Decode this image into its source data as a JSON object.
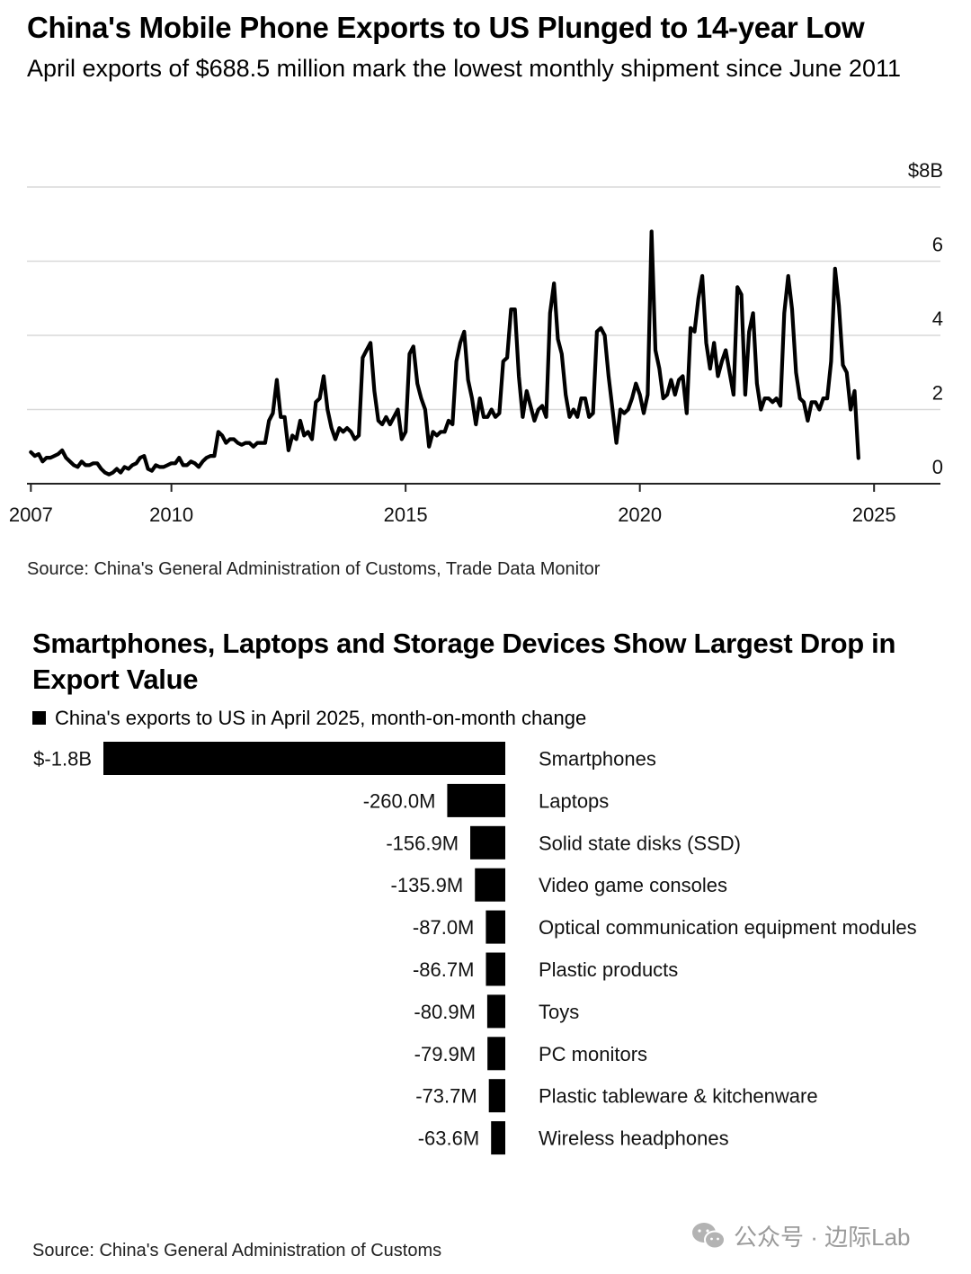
{
  "chart1": {
    "title": "China's Mobile Phone Exports to US Plunged to 14-year Low",
    "subtitle": "April exports of $688.5 million mark the lowest monthly shipment since June 2011",
    "source": "Source: China's General Administration of Customs, Trade Data Monitor"
  },
  "chart2": {
    "title": "Smartphones, Laptops and Storage Devices Show Largest Drop in Export Value",
    "legend": "China's exports to US in April 2025, month-on-month change",
    "source": "Source: China's General Administration of Customs"
  },
  "watermark": {
    "text": "公众号 · 边际Lab"
  },
  "colors": {
    "line": "#000000",
    "bar": "#000000",
    "grid": "#d9d9d9",
    "axis": "#222222",
    "watermark": "#9a9a9a"
  },
  "chart_data": [
    {
      "type": "line",
      "title": "China's Mobile Phone Exports to US Plunged to 14-year Low",
      "xlabel": "",
      "ylabel": "",
      "x_ticks": [
        "2007",
        "2010",
        "2015",
        "2020",
        "2025"
      ],
      "y_ticks": [
        "0",
        "2",
        "4",
        "6",
        "$8B"
      ],
      "ylim": [
        0,
        8
      ],
      "xlim": [
        "2006-12",
        "2026-06"
      ],
      "grid": true,
      "series": [
        {
          "values_start": "2007-01",
          "interval": "monthly",
          "unit": "$B",
          "values": [
            0.85,
            0.75,
            0.8,
            0.6,
            0.7,
            0.7,
            0.75,
            0.8,
            0.9,
            0.7,
            0.6,
            0.5,
            0.45,
            0.6,
            0.5,
            0.5,
            0.55,
            0.55,
            0.4,
            0.3,
            0.25,
            0.3,
            0.4,
            0.3,
            0.45,
            0.4,
            0.5,
            0.55,
            0.7,
            0.75,
            0.4,
            0.35,
            0.5,
            0.45,
            0.45,
            0.5,
            0.55,
            0.55,
            0.7,
            0.5,
            0.5,
            0.6,
            0.55,
            0.45,
            0.6,
            0.7,
            0.75,
            0.75,
            1.4,
            1.3,
            1.1,
            1.2,
            1.2,
            1.1,
            1.05,
            1.1,
            1.1,
            1.0,
            1.1,
            1.1,
            1.1,
            1.7,
            1.9,
            2.8,
            1.8,
            1.8,
            0.9,
            1.3,
            1.2,
            1.7,
            1.3,
            1.4,
            1.2,
            2.2,
            2.3,
            2.9,
            2.0,
            1.5,
            1.2,
            1.5,
            1.4,
            1.5,
            1.4,
            1.2,
            1.3,
            3.4,
            3.6,
            3.8,
            2.5,
            1.7,
            1.6,
            1.8,
            1.6,
            1.8,
            2.0,
            1.2,
            1.4,
            3.5,
            3.7,
            2.7,
            2.3,
            2.0,
            1.0,
            1.4,
            1.3,
            1.4,
            1.4,
            1.7,
            1.6,
            3.3,
            3.8,
            4.1,
            2.8,
            2.3,
            1.6,
            2.3,
            1.8,
            1.8,
            2.0,
            1.8,
            1.9,
            3.3,
            3.4,
            4.7,
            4.7,
            2.9,
            1.8,
            2.5,
            2.1,
            1.7,
            2.0,
            2.1,
            1.8,
            4.6,
            5.4,
            3.9,
            3.5,
            2.4,
            1.8,
            2.0,
            1.8,
            2.3,
            2.3,
            1.8,
            1.9,
            4.1,
            4.2,
            4.0,
            2.9,
            2.0,
            1.1,
            2.0,
            1.9,
            2.0,
            2.3,
            2.7,
            2.4,
            1.9,
            2.4,
            6.8,
            3.6,
            3.1,
            2.3,
            2.4,
            2.8,
            2.4,
            2.8,
            2.9,
            1.9,
            4.2,
            4.1,
            5.0,
            5.6,
            3.8,
            3.1,
            3.8,
            2.9,
            3.3,
            3.6,
            3.0,
            2.4,
            5.3,
            5.1,
            2.4,
            4.1,
            4.6,
            2.7,
            2.0,
            2.3,
            2.3,
            2.2,
            2.3,
            2.1,
            4.6,
            5.6,
            4.7,
            3.0,
            2.3,
            2.2,
            1.7,
            2.2,
            2.2,
            2.0,
            2.3,
            2.3,
            3.3,
            5.8,
            4.8,
            3.2,
            3.0,
            2.0,
            2.5,
            0.69
          ]
        }
      ]
    },
    {
      "type": "bar",
      "orientation": "horizontal",
      "title": "Smartphones, Laptops and Storage Devices Show Largest Drop in Export Value",
      "xlabel": "",
      "ylabel": "",
      "unit": "$M",
      "categories": [
        "Smartphones",
        "Laptops",
        "Solid state disks (SSD)",
        "Video game consoles",
        "Optical communication equipment modules",
        "Plastic products",
        "Toys",
        "PC monitors",
        "Plastic tableware & kitchenware",
        "Wireless headphones"
      ],
      "series": [
        {
          "name": "China's exports to US in April 2025, month-on-month change",
          "values": [
            -1800,
            -260.0,
            -156.9,
            -135.9,
            -87.0,
            -86.7,
            -80.9,
            -79.9,
            -73.7,
            -63.6
          ]
        }
      ],
      "value_labels": [
        "$-1.8B",
        "-260.0M",
        "-156.9M",
        "-135.9M",
        "-87.0M",
        "-86.7M",
        "-80.9M",
        "-79.9M",
        "-73.7M",
        "-63.6M"
      ],
      "legend": "top-left"
    }
  ]
}
